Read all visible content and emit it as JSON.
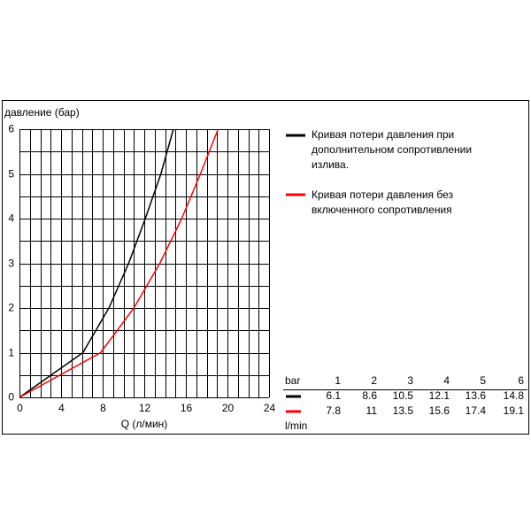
{
  "chart_data": {
    "type": "line",
    "ylabel": "давление (бар)",
    "xlabel": "Q (л/мин)",
    "xlim": [
      0,
      24
    ],
    "ylim": [
      0,
      6
    ],
    "xticks": [
      0,
      4,
      8,
      12,
      16,
      20,
      24
    ],
    "yticks": [
      0,
      1,
      2,
      3,
      4,
      5,
      6
    ],
    "xgrid": [
      1,
      2,
      3,
      5,
      6,
      7,
      9,
      10,
      11,
      13,
      14,
      15,
      17,
      18,
      19,
      21,
      22,
      23
    ],
    "ygrid": [
      0.5,
      1.5,
      2.5,
      3.5,
      4.5,
      5.5
    ],
    "grid": true,
    "series": [
      {
        "name": "Кривая потери давления при дополнительном сопротивлении излива.",
        "color": "#000000",
        "x": [
          0,
          6.1,
          8.6,
          10.5,
          12.1,
          13.6,
          14.8
        ],
        "values": [
          0,
          1,
          2,
          3,
          4,
          5,
          6
        ]
      },
      {
        "name": "Кривая потери давления без включенного сопротивления",
        "color": "#ff0000",
        "x": [
          0,
          7.8,
          11.0,
          13.5,
          15.6,
          17.4,
          19.1
        ],
        "values": [
          0,
          1,
          2,
          3,
          4,
          5,
          6
        ]
      }
    ],
    "table": {
      "header_label": "bar",
      "footer_label": "l/min"
    }
  }
}
